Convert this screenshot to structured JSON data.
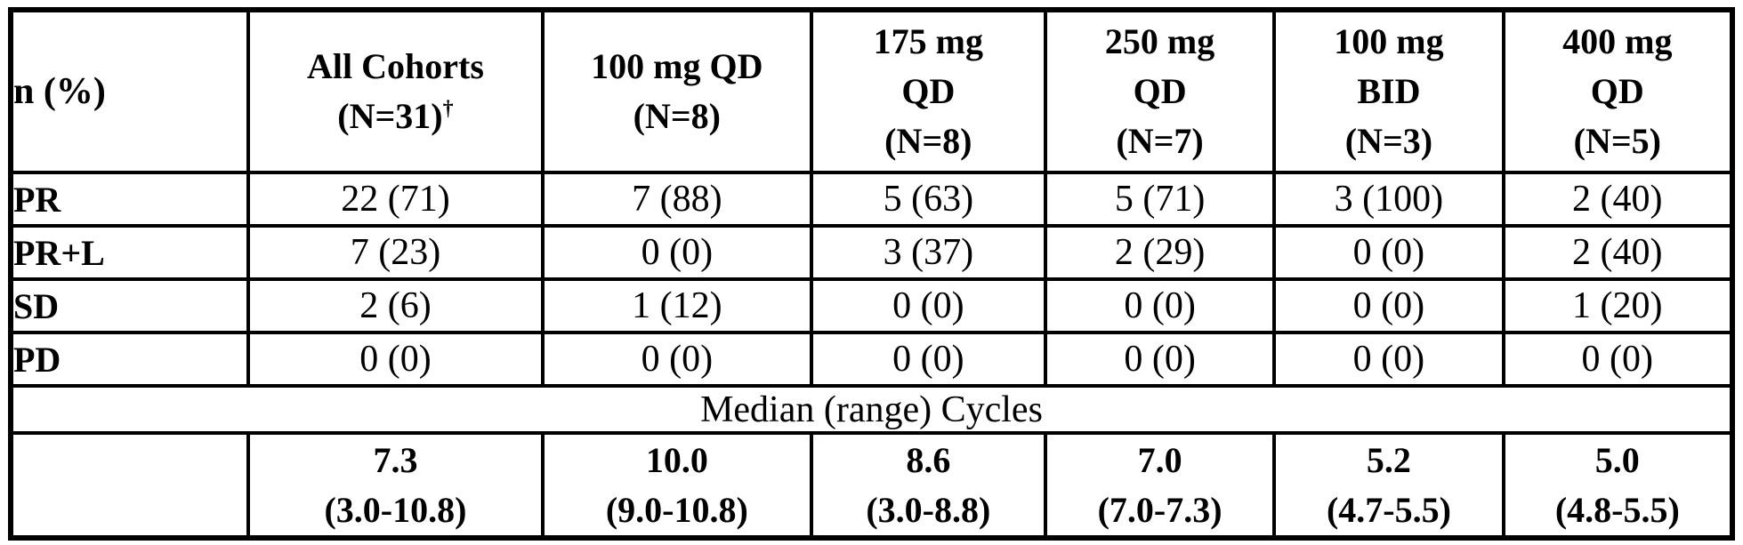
{
  "table": {
    "header": {
      "corner": "n (%)",
      "columns": [
        {
          "line1": "All Cohorts",
          "line2": "(N=31)",
          "sup": "†"
        },
        {
          "line1": "100 mg QD",
          "line2": "(N=8)"
        },
        {
          "line1": "175 mg",
          "line2": "QD",
          "line3": "(N=8)"
        },
        {
          "line1": "250 mg",
          "line2": "QD",
          "line3": "(N=7)"
        },
        {
          "line1": "100 mg",
          "line2": "BID",
          "line3": "(N=3)"
        },
        {
          "line1": "400 mg",
          "line2": "QD",
          "line3": "(N=5)"
        }
      ]
    },
    "rows": [
      {
        "label": "PR",
        "values": [
          "22 (71)",
          "7 (88)",
          "5 (63)",
          "5 (71)",
          "3 (100)",
          "2 (40)"
        ]
      },
      {
        "label": "PR+L",
        "values": [
          "7 (23)",
          "0 (0)",
          "3 (37)",
          "2 (29)",
          "0 (0)",
          "2 (40)"
        ]
      },
      {
        "label": "SD",
        "values": [
          "2 (6)",
          "1 (12)",
          "0 (0)",
          "0 (0)",
          "0 (0)",
          "1 (20)"
        ]
      },
      {
        "label": "PD",
        "values": [
          "0 (0)",
          "0 (0)",
          "0 (0)",
          "0 (0)",
          "0 (0)",
          "0 (0)"
        ]
      }
    ],
    "median_section_label": "Median (range) Cycles",
    "median_row": {
      "cells": [
        {
          "value": "7.3",
          "range": "(3.0-10.8)"
        },
        {
          "value": "10.0",
          "range": "(9.0-10.8)"
        },
        {
          "value": "8.6",
          "range": "(3.0-8.8)"
        },
        {
          "value": "7.0",
          "range": "(7.0-7.3)"
        },
        {
          "value": "5.2",
          "range": "(4.7-5.5)"
        },
        {
          "value": "5.0",
          "range": "(4.8-5.5)"
        }
      ]
    }
  }
}
